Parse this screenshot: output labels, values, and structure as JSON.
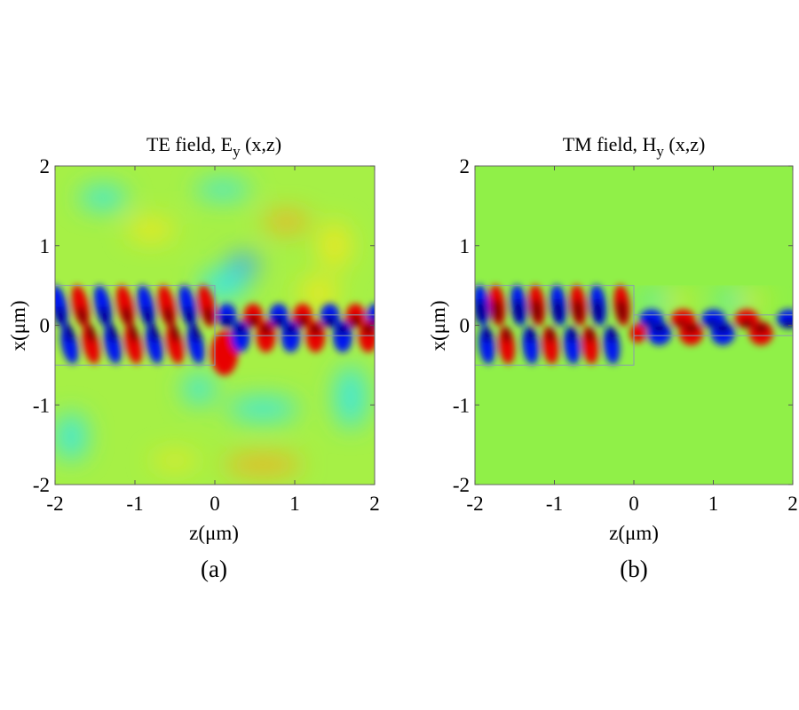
{
  "chart_data": [
    {
      "type": "heatmap",
      "panel_label": "(a)",
      "title_main": "TE field, E",
      "title_sub": "y",
      "title_args": " (x,z)",
      "xlabel": "z(μm)",
      "ylabel": "x(μm)",
      "xlim": [
        -2,
        2
      ],
      "ylim": [
        -2,
        2
      ],
      "xticks": [
        "-2",
        "-1",
        "0",
        "1",
        "2"
      ],
      "yticks": [
        "2",
        "1",
        "0",
        "-1",
        "-2"
      ],
      "colormap": "jet",
      "background_color": "#a6f046"
    },
    {
      "type": "heatmap",
      "panel_label": "(b)",
      "title_main": "TM field, H",
      "title_sub": "y",
      "title_args": " (x,z)",
      "xlabel": "z(μm)",
      "ylabel": "x(μm)",
      "xlim": [
        -2,
        2
      ],
      "ylim": [
        -2,
        2
      ],
      "xticks": [
        "-2",
        "-1",
        "0",
        "1",
        "2"
      ],
      "yticks": [
        "2",
        "1",
        "0",
        "-1",
        "-2"
      ],
      "colormap": "jet",
      "background_color": "#90f048"
    }
  ],
  "colors": {
    "red": "#e80000",
    "dark_red": "#7a0000",
    "blue": "#0018f0",
    "dark_blue": "#000088",
    "cyan": "#40e8d8",
    "yellow": "#e8e820",
    "orange": "#f0b020",
    "frame": "#8a9ab0"
  }
}
